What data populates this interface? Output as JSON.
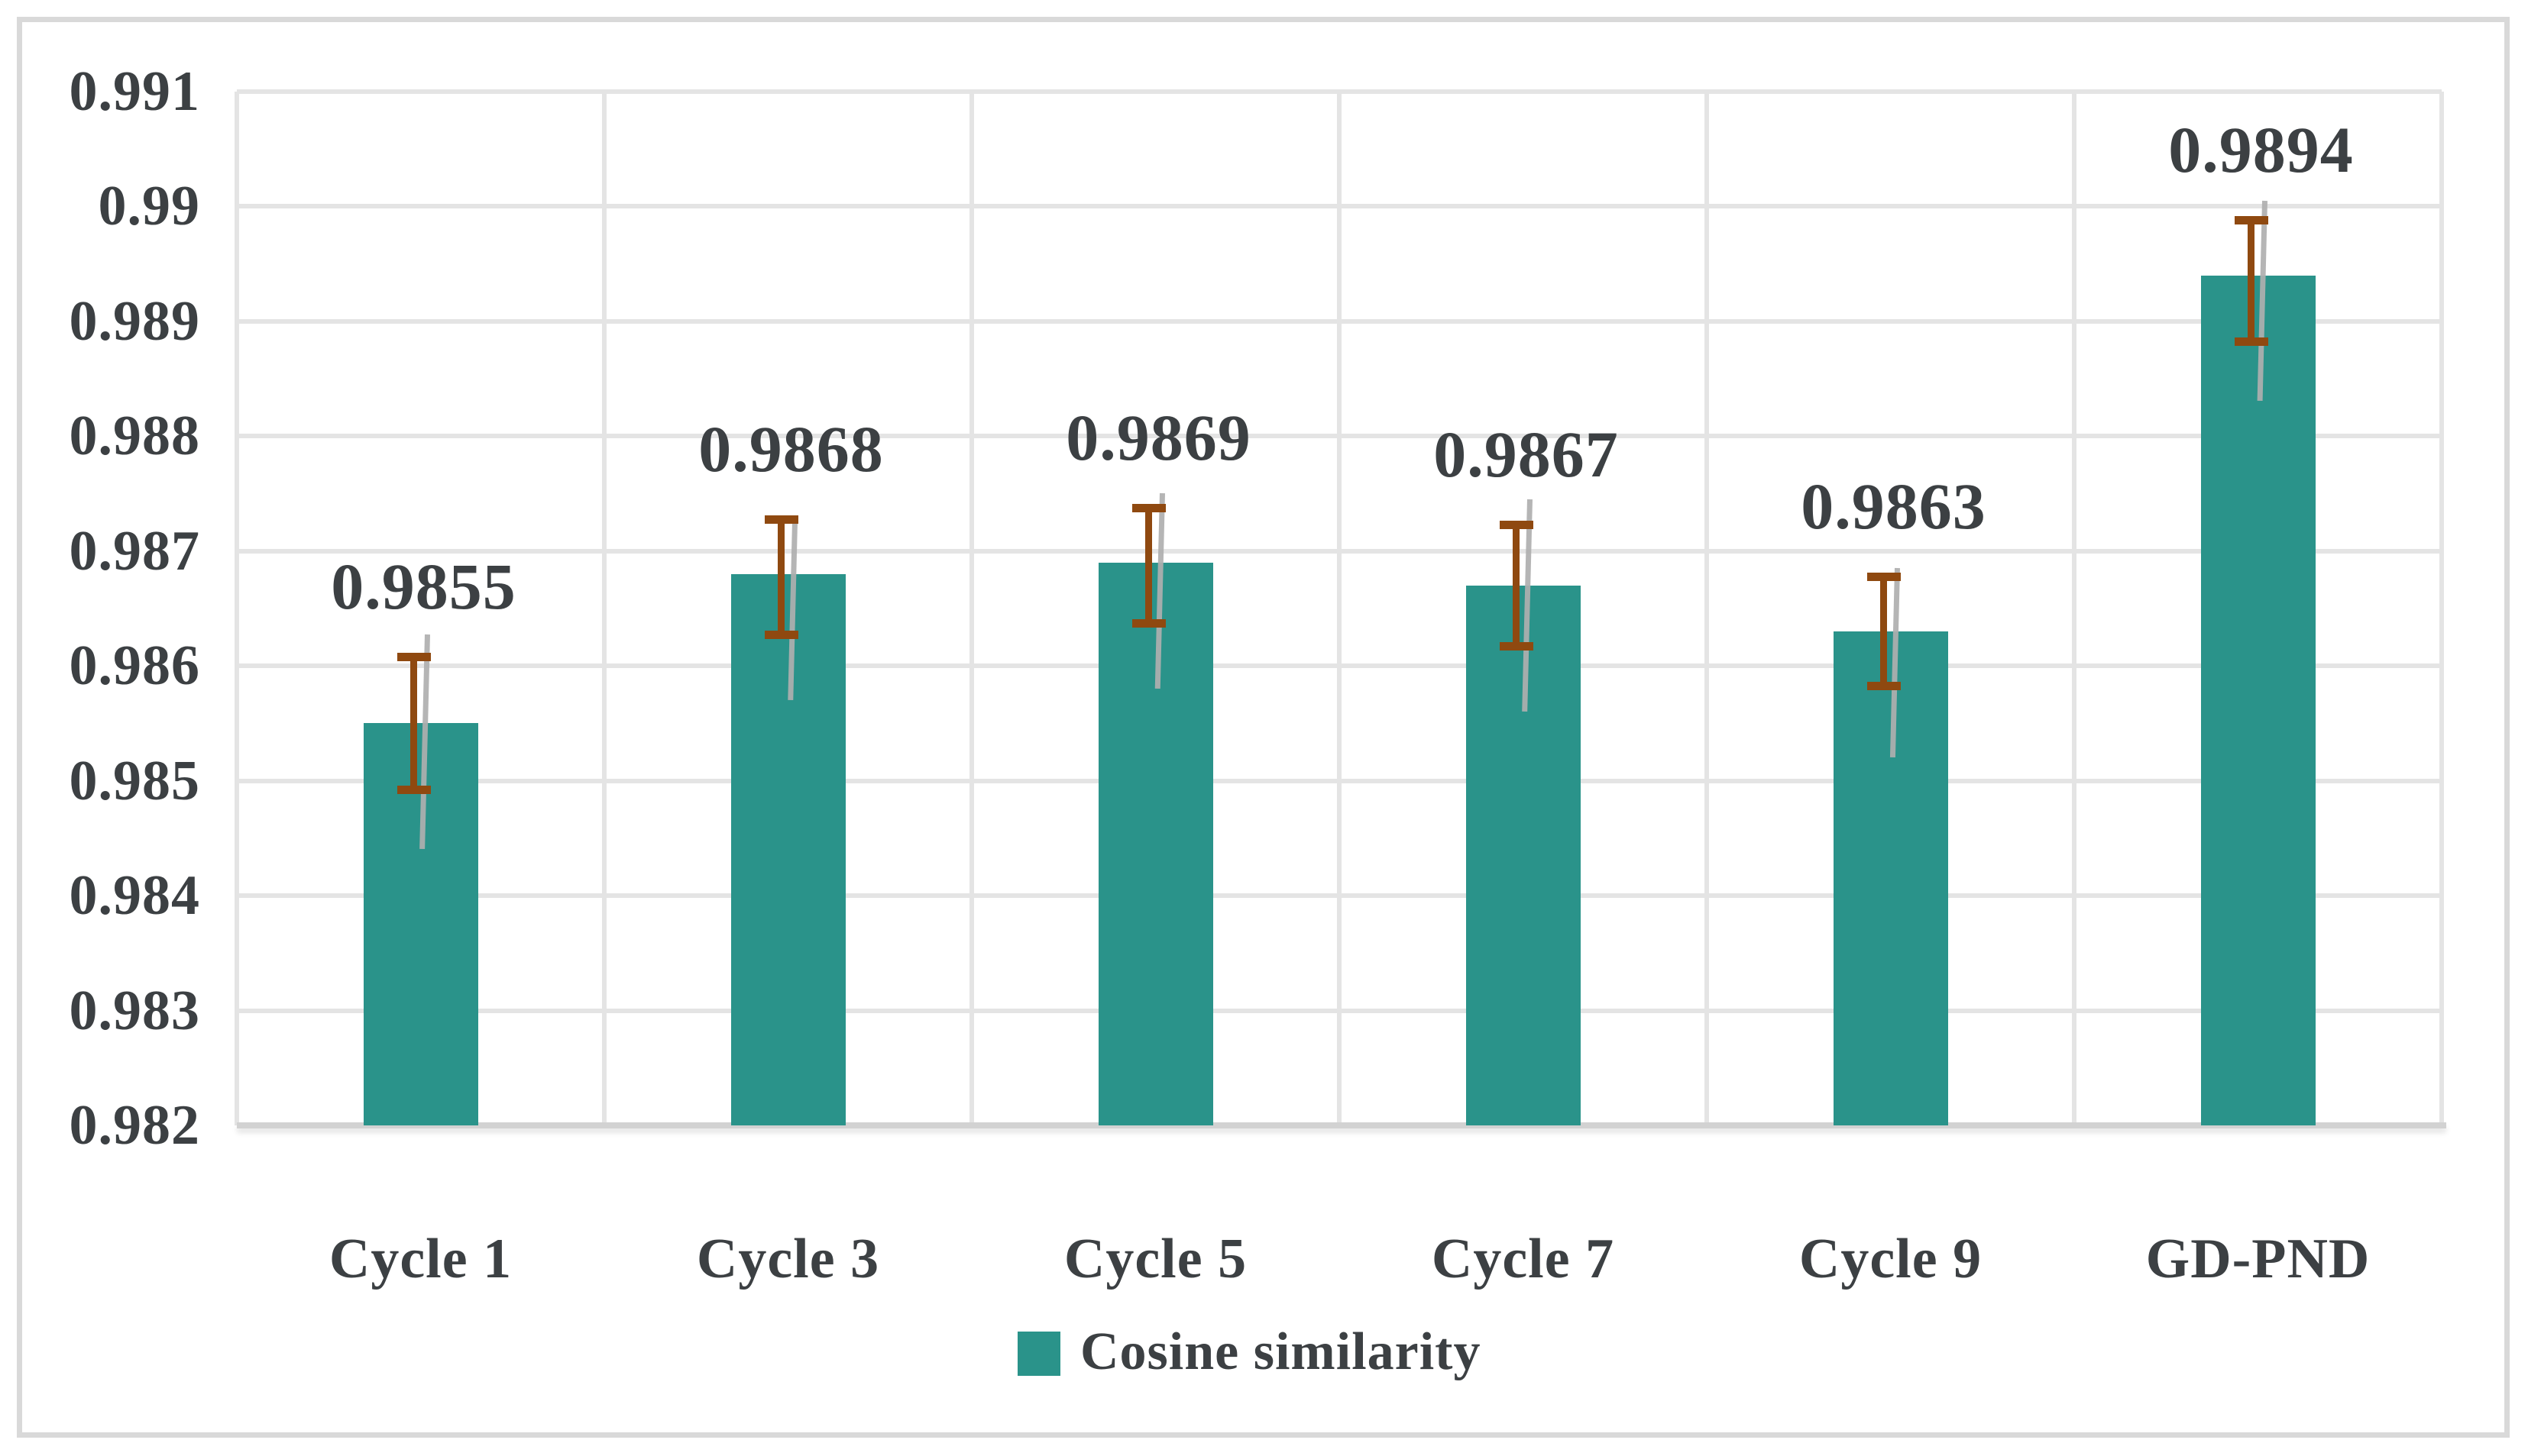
{
  "chart_data": {
    "type": "bar",
    "title": "",
    "xlabel": "",
    "ylabel": "",
    "categories": [
      "Cycle 1",
      "Cycle 3",
      "Cycle 5",
      "Cycle 7",
      "Cycle 9",
      "GD-PND"
    ],
    "series": [
      {
        "name": "Cosine similarity",
        "values": [
          0.9855,
          0.9868,
          0.9869,
          0.9867,
          0.9863,
          0.9894
        ],
        "data_labels": [
          "0.9855",
          "0.9868",
          "0.9869",
          "0.9867",
          "0.9863",
          "0.9894"
        ],
        "error_up": [
          0.0006,
          0.0005,
          0.0005,
          0.00055,
          0.0005,
          0.0005
        ],
        "error_down": [
          0.0006,
          0.00055,
          0.00055,
          0.00055,
          0.0005,
          0.0006
        ]
      }
    ],
    "ylim": [
      0.982,
      0.991
    ],
    "ytick_step": 0.001,
    "ytick_labels": [
      "0.991",
      "0.99",
      "0.989",
      "0.988",
      "0.987",
      "0.986",
      "0.985",
      "0.984",
      "0.983",
      "0.982"
    ],
    "grid": true,
    "legend_position": "bottom",
    "colors": {
      "bar": "#2A938A",
      "error_bar": "#8F4910",
      "error_shadow": "#AFAFAF",
      "gridline": "#E4E4E4",
      "axis_line": "#D2D2D2",
      "text": "#3C4043",
      "figure_border": "#D9D9D9",
      "background": "#FFFFFF"
    }
  },
  "legend": {
    "label": "Cosine similarity"
  }
}
